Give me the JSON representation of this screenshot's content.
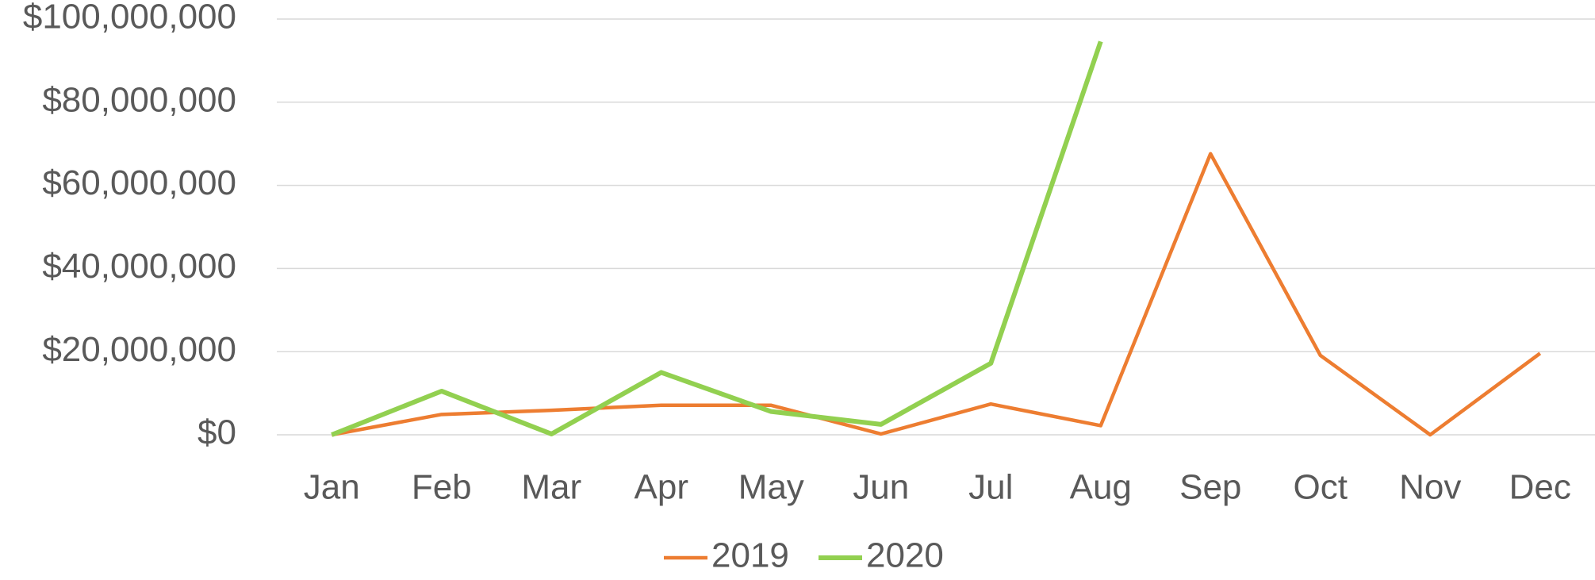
{
  "chart_data": {
    "type": "line",
    "categories": [
      "Jan",
      "Feb",
      "Mar",
      "Apr",
      "May",
      "Jun",
      "Jul",
      "Aug",
      "Sep",
      "Oct",
      "Nov",
      "Dec"
    ],
    "series": [
      {
        "name": "2019",
        "color": "#ed7d31",
        "values": [
          0,
          4900000,
          5900000,
          7100000,
          7100000,
          200000,
          7400000,
          2200000,
          67600000,
          19100000,
          0,
          19600000
        ]
      },
      {
        "name": "2020",
        "color": "#92d050",
        "values": [
          0,
          10500000,
          200000,
          15000000,
          5600000,
          2500000,
          17200000,
          94600000,
          null,
          null,
          null,
          null
        ]
      }
    ],
    "ylim": [
      0,
      100000000
    ],
    "yticks": [
      {
        "value": 0,
        "label": "$0"
      },
      {
        "value": 20000000,
        "label": "$20,000,000"
      },
      {
        "value": 40000000,
        "label": "$40,000,000"
      },
      {
        "value": 60000000,
        "label": "$60,000,000"
      },
      {
        "value": 80000000,
        "label": "$80,000,000"
      },
      {
        "value": 100000000,
        "label": "$100,000,000"
      }
    ],
    "grid": true,
    "legend": "bottom"
  }
}
